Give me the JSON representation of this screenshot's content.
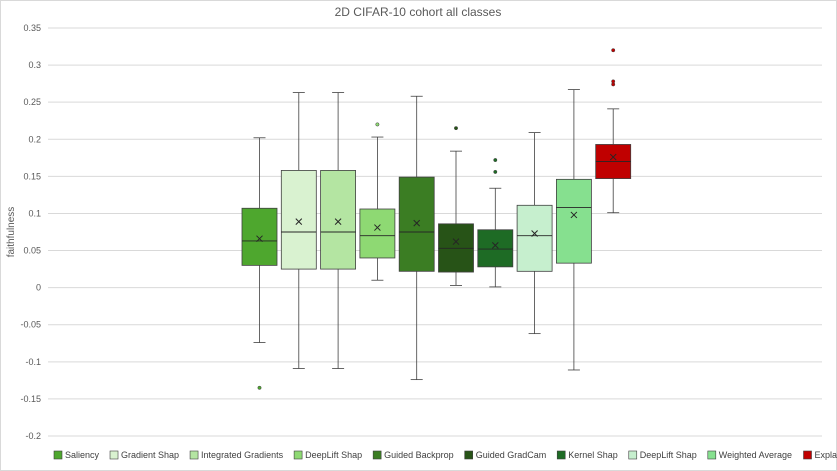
{
  "chart_data": {
    "type": "box",
    "title": "2D CIFAR-10 cohort all classes",
    "ylabel": "faithfulness",
    "xlabel": "",
    "ylim": [
      -0.2,
      0.35
    ],
    "yticks": [
      0.35,
      0.3,
      0.25,
      0.2,
      0.15,
      0.1,
      0.05,
      0,
      -0.05,
      -0.1,
      -0.15,
      -0.2
    ],
    "ytick_labels": [
      "0.35",
      "0.3",
      "0.25",
      "0.2",
      "0.15",
      "0.1",
      "0.05",
      "0",
      "-0.05",
      "-0.1",
      "-0.15",
      "-0.2"
    ],
    "grid": "horizontal",
    "legend_position": "bottom",
    "series": [
      {
        "name": "Saliency",
        "color": "#4ea72e",
        "whisker_low": -0.074,
        "q1": 0.03,
        "median": 0.063,
        "q3": 0.107,
        "whisker_high": 0.202,
        "mean": 0.066,
        "outliers": [
          -0.135
        ]
      },
      {
        "name": "Gradient Shap",
        "color": "#d9f2d0",
        "whisker_low": -0.109,
        "q1": 0.025,
        "median": 0.075,
        "q3": 0.158,
        "whisker_high": 0.263,
        "mean": 0.089,
        "outliers": []
      },
      {
        "name": "Integrated Gradients",
        "color": "#b4e5a2",
        "whisker_low": -0.109,
        "q1": 0.025,
        "median": 0.075,
        "q3": 0.158,
        "whisker_high": 0.263,
        "mean": 0.089,
        "outliers": []
      },
      {
        "name": "DeepLift Shap",
        "color": "#8ed973",
        "whisker_low": 0.01,
        "q1": 0.04,
        "median": 0.07,
        "q3": 0.106,
        "whisker_high": 0.203,
        "mean": 0.081,
        "outliers": [
          0.22
        ]
      },
      {
        "name": "Guided Backprop",
        "color": "#3b7d23",
        "whisker_low": -0.124,
        "q1": 0.022,
        "median": 0.075,
        "q3": 0.149,
        "whisker_high": 0.258,
        "mean": 0.087,
        "outliers": []
      },
      {
        "name": "Guided GradCam",
        "color": "#275317",
        "whisker_low": 0.003,
        "q1": 0.021,
        "median": 0.053,
        "q3": 0.086,
        "whisker_high": 0.184,
        "mean": 0.062,
        "outliers": [
          0.215
        ]
      },
      {
        "name": "Kernel Shap",
        "color": "#1e6b25",
        "whisker_low": 0.001,
        "q1": 0.028,
        "median": 0.052,
        "q3": 0.078,
        "whisker_high": 0.134,
        "mean": 0.057,
        "outliers": [
          0.156,
          0.172
        ]
      },
      {
        "name": "DeepLift Shap",
        "color": "#c6efce",
        "whisker_low": -0.062,
        "q1": 0.022,
        "median": 0.07,
        "q3": 0.111,
        "whisker_high": 0.209,
        "mean": 0.073,
        "outliers": []
      },
      {
        "name": "Weighted Average",
        "color": "#86e08f",
        "whisker_low": -0.111,
        "q1": 0.033,
        "median": 0.108,
        "q3": 0.146,
        "whisker_high": 0.267,
        "mean": 0.098,
        "outliers": []
      },
      {
        "name": "Explanation Optimizer (non-linear)",
        "color": "#c00000",
        "whisker_low": 0.101,
        "q1": 0.147,
        "median": 0.17,
        "q3": 0.193,
        "whisker_high": 0.241,
        "mean": 0.176,
        "outliers": [
          0.274,
          0.278,
          0.32
        ]
      }
    ]
  }
}
